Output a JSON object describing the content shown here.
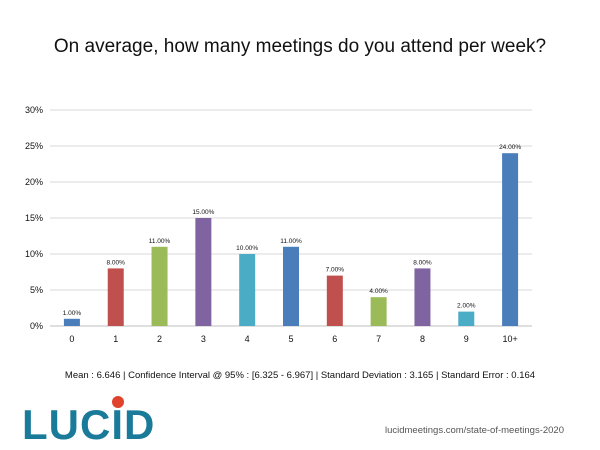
{
  "page": {
    "title": "On average, how many meetings do you attend per week?",
    "stats_line": "Mean : 6.646  |  Confidence Interval @ 95% : [6.325 - 6.967]  |  Standard Deviation : 3.165  |  Standard Error : 0.164",
    "logo_text": "LUCID",
    "source": "lucidmeetings.com/state-of-meetings-2020"
  },
  "colors": {
    "blue": "#4a7ebb",
    "red": "#c0504d",
    "green": "#9bbb59",
    "purple": "#8064a2",
    "teal": "#4bacc6",
    "logo_text": "#1a7a9a",
    "logo_dot": "#e0422b"
  },
  "chart_data": {
    "type": "bar",
    "title": "On average, how many meetings do you attend per week?",
    "xlabel": "",
    "ylabel": "",
    "categories": [
      "0",
      "1",
      "2",
      "3",
      "4",
      "5",
      "6",
      "7",
      "8",
      "9",
      "10+"
    ],
    "values": [
      1.0,
      8.0,
      11.0,
      15.0,
      10.0,
      11.0,
      7.0,
      4.0,
      8.0,
      2.0,
      24.0
    ],
    "data_labels": [
      "1.00%",
      "8.00%",
      "11.00%",
      "15.00%",
      "10.00%",
      "11.00%",
      "7.00%",
      "4.00%",
      "8.00%",
      "2.00%",
      "24.00%"
    ],
    "bar_colors": [
      "#4a7ebb",
      "#c0504d",
      "#9bbb59",
      "#8064a2",
      "#4bacc6",
      "#4a7ebb",
      "#c0504d",
      "#9bbb59",
      "#8064a2",
      "#4bacc6",
      "#4a7ebb"
    ],
    "ylim": [
      0,
      30
    ],
    "yticks": [
      0,
      5,
      10,
      15,
      20,
      25,
      30
    ],
    "ytick_labels": [
      "0%",
      "5%",
      "10%",
      "15%",
      "20%",
      "25%",
      "30%"
    ],
    "grid": true,
    "legend": "none"
  }
}
